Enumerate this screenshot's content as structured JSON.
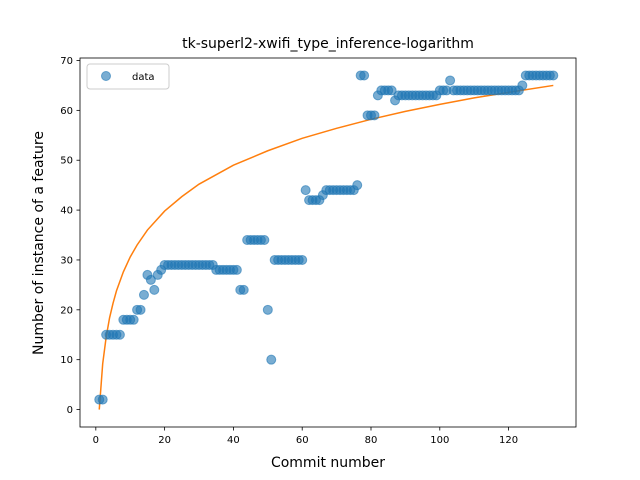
{
  "chart_data": {
    "type": "scatter",
    "title": "tk-superl2-xwifi_type_inference-logarithm",
    "xlabel": "Commit number",
    "ylabel": "Number of instance of a feature",
    "xlim": [
      -4.6,
      139.6
    ],
    "ylim": [
      -3.5,
      70.5
    ],
    "xticks": [
      0,
      20,
      40,
      60,
      80,
      100,
      120
    ],
    "yticks": [
      0,
      10,
      20,
      30,
      40,
      50,
      60,
      70
    ],
    "grid": false,
    "legend_position": "top-left",
    "colors": {
      "data": "#1f77b4",
      "fit": "#ff7f0e"
    },
    "series": [
      {
        "name": "data",
        "kind": "scatter",
        "x": [
          1,
          2,
          3,
          4,
          5,
          6,
          7,
          8,
          9,
          10,
          11,
          12,
          13,
          14,
          15,
          16,
          17,
          18,
          19,
          20,
          21,
          22,
          23,
          24,
          25,
          26,
          27,
          28,
          29,
          30,
          31,
          32,
          33,
          34,
          35,
          36,
          37,
          38,
          39,
          40,
          41,
          42,
          43,
          44,
          45,
          46,
          47,
          48,
          49,
          50,
          51,
          52,
          53,
          54,
          55,
          56,
          57,
          58,
          59,
          60,
          61,
          62,
          63,
          64,
          65,
          66,
          67,
          68,
          69,
          70,
          71,
          72,
          73,
          74,
          75,
          76,
          77,
          78,
          79,
          80,
          81,
          82,
          83,
          84,
          85,
          86,
          87,
          88,
          89,
          90,
          91,
          92,
          93,
          94,
          95,
          96,
          97,
          98,
          99,
          100,
          101,
          102,
          103,
          104,
          105,
          106,
          107,
          108,
          109,
          110,
          111,
          112,
          113,
          114,
          115,
          116,
          117,
          118,
          119,
          120,
          121,
          122,
          123,
          124,
          125,
          126,
          127,
          128,
          129,
          130,
          131,
          132,
          133
        ],
        "y": [
          2,
          2,
          15,
          15,
          15,
          15,
          15,
          18,
          18,
          18,
          18,
          20,
          20,
          23,
          27,
          26,
          24,
          27,
          28,
          29,
          29,
          29,
          29,
          29,
          29,
          29,
          29,
          29,
          29,
          29,
          29,
          29,
          29,
          29,
          28,
          28,
          28,
          28,
          28,
          28,
          28,
          24,
          24,
          34,
          34,
          34,
          34,
          34,
          34,
          20,
          10,
          30,
          30,
          30,
          30,
          30,
          30,
          30,
          30,
          30,
          44,
          42,
          42,
          42,
          42,
          43,
          44,
          44,
          44,
          44,
          44,
          44,
          44,
          44,
          44,
          45,
          67,
          67,
          59,
          59,
          59,
          63,
          64,
          64,
          64,
          64,
          62,
          63,
          63,
          63,
          63,
          63,
          63,
          63,
          63,
          63,
          63,
          63,
          63,
          64,
          64,
          64,
          66,
          64,
          64,
          64,
          64,
          64,
          64,
          64,
          64,
          64,
          64,
          64,
          64,
          64,
          64,
          64,
          64,
          64,
          64,
          64,
          64,
          65,
          67,
          67,
          67,
          67,
          67,
          67,
          67,
          67,
          67
        ]
      },
      {
        "name": "",
        "kind": "line",
        "x": [
          1,
          2,
          3,
          4,
          5,
          6,
          8,
          10,
          12,
          15,
          20,
          25,
          30,
          40,
          50,
          60,
          70,
          80,
          90,
          100,
          110,
          120,
          133
        ],
        "y": [
          0,
          9.2,
          14.5,
          18.4,
          21.3,
          23.8,
          27.6,
          30.6,
          33.0,
          36.0,
          39.8,
          42.7,
          45.2,
          49.0,
          51.9,
          54.4,
          56.4,
          58.2,
          59.8,
          61.2,
          62.5,
          63.6,
          65.0
        ]
      }
    ]
  }
}
